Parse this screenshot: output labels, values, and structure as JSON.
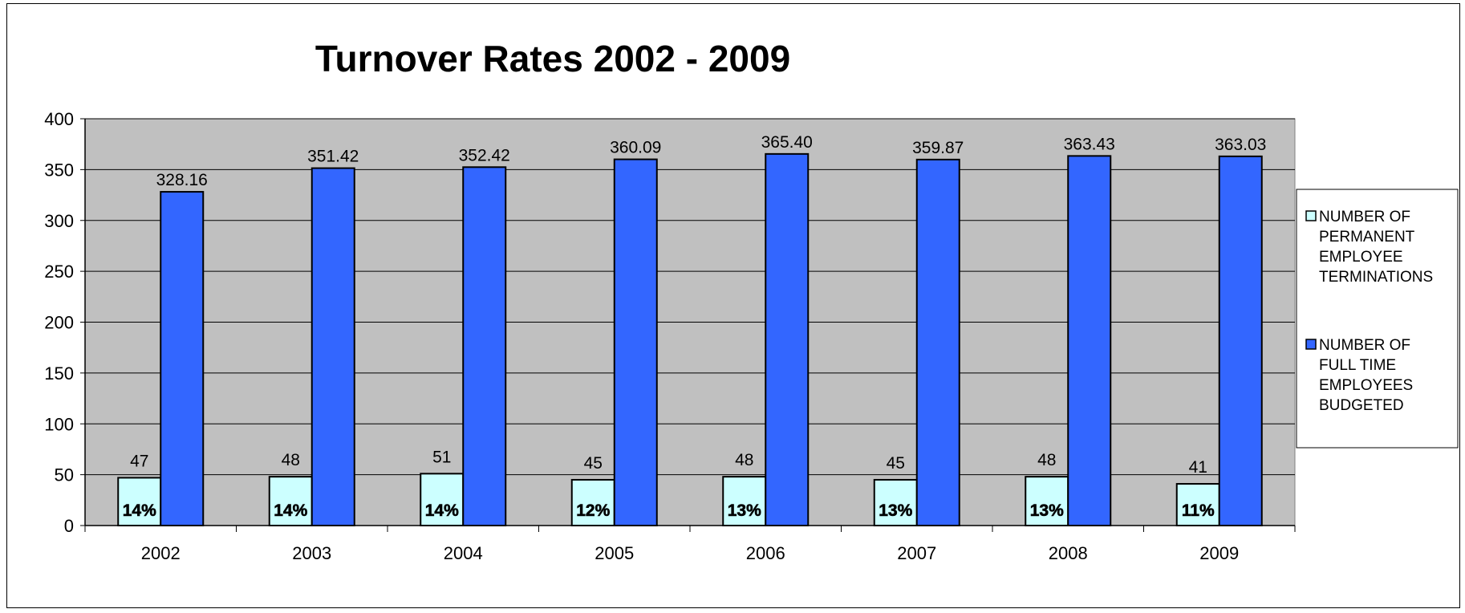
{
  "chart_data": {
    "type": "bar",
    "title": "Turnover Rates 2002 - 2009",
    "xlabel": "",
    "ylabel": "",
    "categories": [
      "2002",
      "2003",
      "2004",
      "2005",
      "2006",
      "2007",
      "2008",
      "2009"
    ],
    "ylim": [
      0,
      400
    ],
    "yticks": [
      0,
      50,
      100,
      150,
      200,
      250,
      300,
      350,
      400
    ],
    "grid": true,
    "legend_position": "right",
    "plot_background": "#C0C0C0",
    "series": [
      {
        "name": "NUMBER OF PERMANENT EMPLOYEE TERMINATIONS",
        "legend_lines": [
          "NUMBER OF",
          "PERMANENT",
          "EMPLOYEE",
          "TERMINATIONS"
        ],
        "color": "#CCFFFF",
        "values": [
          47,
          48,
          51,
          45,
          48,
          45,
          48,
          41
        ],
        "data_labels": [
          "47",
          "48",
          "51",
          "45",
          "48",
          "45",
          "48",
          "41"
        ],
        "rate_labels": [
          "14%",
          "14%",
          "14%",
          "12%",
          "13%",
          "13%",
          "13%",
          "11%"
        ]
      },
      {
        "name": "NUMBER OF FULL TIME EMPLOYEES BUDGETED",
        "legend_lines": [
          "NUMBER OF",
          "FULL TIME",
          "EMPLOYEES",
          "BUDGETED"
        ],
        "color": "#3366FF",
        "values": [
          328.16,
          351.42,
          352.42,
          360.09,
          365.4,
          359.87,
          363.43,
          363.03
        ],
        "data_labels": [
          "328.16",
          "351.42",
          "352.42",
          "360.09",
          "365.40",
          "359.87",
          "363.43",
          "363.03"
        ]
      }
    ]
  }
}
